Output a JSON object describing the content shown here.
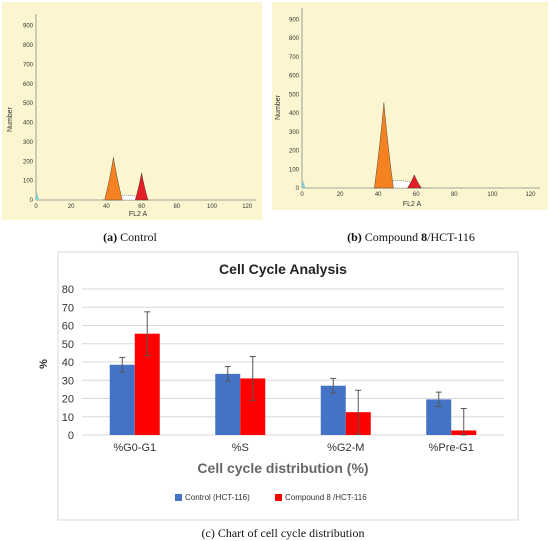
{
  "chart_data": [
    {
      "type": "area",
      "panel": "a",
      "ylabel": "Number",
      "xlabel": "FL2 A",
      "xlim": [
        0,
        125
      ],
      "ylim": [
        0,
        960
      ],
      "xticks": [
        "0",
        "20",
        "40",
        "60",
        "80",
        "100",
        "120"
      ],
      "yticks": [
        "0",
        "100",
        "200",
        "300",
        "400",
        "500",
        "600",
        "700",
        "800",
        "900"
      ],
      "peaks": [
        {
          "name": "G0-G1",
          "x": 44,
          "y": 220,
          "color": "#f58220"
        },
        {
          "name": "S",
          "x": 50,
          "y": 25,
          "color": "#9a9a9a"
        },
        {
          "name": "G2-M",
          "x": 60,
          "y": 140,
          "color": "#e31e24"
        }
      ],
      "caption_label": "(a)",
      "caption_text": "Control"
    },
    {
      "type": "area",
      "panel": "b",
      "ylabel": "Number",
      "xlabel": "FL2 A",
      "xlim": [
        0,
        125
      ],
      "ylim": [
        0,
        960
      ],
      "xticks": [
        "0",
        "20",
        "40",
        "60",
        "80",
        "100",
        "120"
      ],
      "yticks": [
        "0",
        "100",
        "200",
        "300",
        "400",
        "500",
        "600",
        "700",
        "800",
        "900"
      ],
      "peaks": [
        {
          "name": "G0-G1",
          "x": 43,
          "y": 455,
          "color": "#f58220"
        },
        {
          "name": "S",
          "x": 51,
          "y": 40,
          "color": "#9a9a9a"
        },
        {
          "name": "G2-M",
          "x": 59,
          "y": 70,
          "color": "#e31e24"
        }
      ],
      "caption_label": "(b)",
      "caption_text_1": "Compound",
      "caption_bold": "8",
      "caption_text_2": "/HCT-116"
    },
    {
      "type": "bar",
      "panel": "c",
      "title": "Cell Cycle Analysis",
      "xlabel": "Cell cycle distribution (%)",
      "ylabel": "%",
      "ylim": [
        0,
        80
      ],
      "yticks": [
        "0",
        "10",
        "20",
        "30",
        "40",
        "50",
        "60",
        "70",
        "80"
      ],
      "categories": [
        "%G0-G1",
        "%S",
        "%G2-M",
        "%Pre-G1"
      ],
      "series": [
        {
          "name": "Control (HCT-116)",
          "color": "#4472c4",
          "values": [
            38.5,
            33.5,
            27,
            19.5
          ],
          "errors": [
            4,
            4,
            4,
            4
          ]
        },
        {
          "name": "Compound 8 /HCT-116",
          "color": "#ff0000",
          "values": [
            55.5,
            31,
            12.5,
            2.5
          ],
          "errors": [
            12,
            12,
            12,
            12
          ]
        }
      ],
      "legend": "bottom",
      "grid": true,
      "caption_label": "(c)",
      "caption_text": "Chart of cell cycle distribution"
    }
  ]
}
